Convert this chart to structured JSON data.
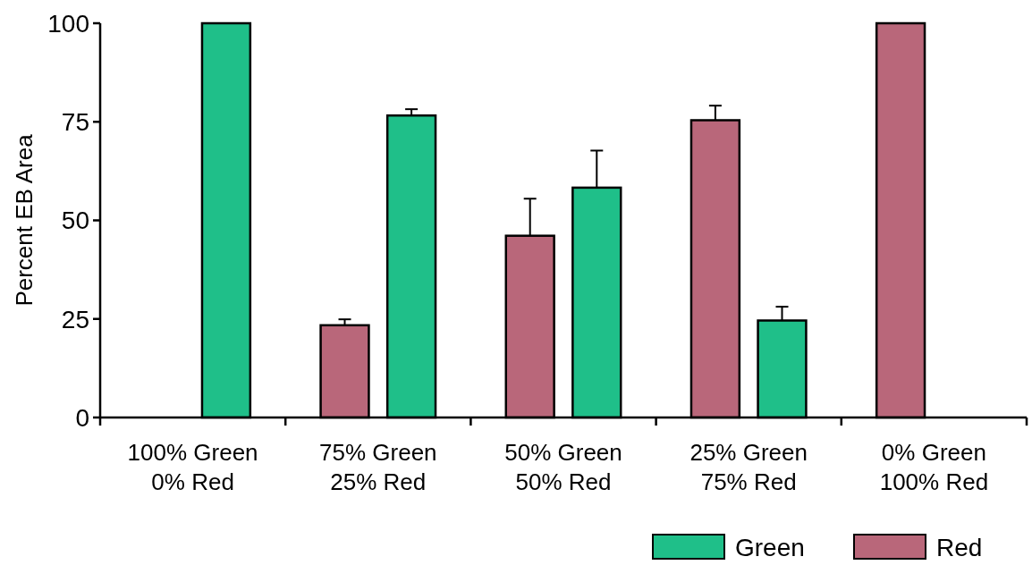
{
  "chart_data": {
    "type": "bar",
    "ylabel": "Percent EB Area",
    "categories": [
      "100% Green\n0% Red",
      "75% Green\n25% Red",
      "50% Green\n50% Red",
      "25% Green\n75% Red",
      "0% Green\n100% Red"
    ],
    "series": [
      {
        "name": "Red",
        "color": "#b9677a",
        "values": [
          0,
          23.4,
          46.1,
          75.4,
          100
        ],
        "errors": [
          null,
          [
            23.4,
            24.9
          ],
          [
            46.1,
            55.5
          ],
          [
            75.4,
            79.1
          ],
          null
        ]
      },
      {
        "name": "Green",
        "color": "#1fbf89",
        "values": [
          100,
          76.6,
          58.3,
          24.6,
          0
        ],
        "errors": [
          null,
          [
            76.6,
            78.2
          ],
          [
            58.3,
            67.7
          ],
          [
            24.6,
            28.1
          ],
          null
        ]
      }
    ],
    "ylim": [
      0,
      100
    ],
    "yticks": [
      0,
      25,
      50,
      75,
      100
    ],
    "legend": "bottom right"
  }
}
